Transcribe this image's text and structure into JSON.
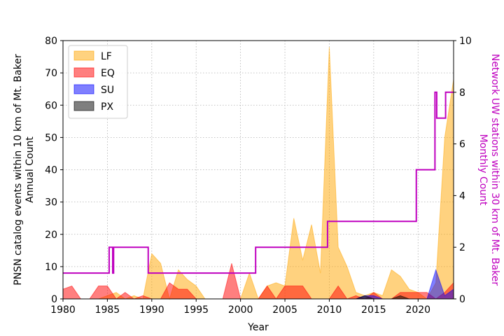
{
  "chart_data": {
    "type": "area",
    "xlabel": "Year",
    "ylabel_lines": [
      "PNSN catalog events within 10 km of Mt. Baker",
      "Annual Count"
    ],
    "ylabel2_lines": [
      "Network UW stations within 30 km of Mt. Baker",
      "Monthly Count"
    ],
    "xlim": [
      1980,
      2024
    ],
    "ylim": [
      0,
      80
    ],
    "ylim2": [
      0,
      10
    ],
    "xticks": [
      1980,
      1985,
      1990,
      1995,
      2000,
      2005,
      2010,
      2015,
      2020
    ],
    "yticks": [
      0,
      10,
      20,
      30,
      40,
      50,
      60,
      70,
      80
    ],
    "yticks2": [
      0,
      2,
      4,
      6,
      8,
      10
    ],
    "grid": true,
    "legend_position": "top-left",
    "colors": {
      "LF": "#ffa500",
      "EQ": "#ff0000",
      "SU": "#0000ff",
      "PX": "#000000",
      "stations": "#bf00bf"
    },
    "series": [
      {
        "name": "LF",
        "color": "#ffa500",
        "x": [
          1980,
          1981,
          1982,
          1983,
          1984,
          1985,
          1986,
          1987,
          1988,
          1989,
          1990,
          1991,
          1992,
          1993,
          1994,
          1995,
          1996,
          1997,
          1998,
          1999,
          2000,
          2001,
          2002,
          2003,
          2004,
          2005,
          2006,
          2007,
          2008,
          2009,
          2010,
          2011,
          2012,
          2013,
          2014,
          2015,
          2016,
          2017,
          2018,
          2019,
          2020,
          2021,
          2022,
          2023,
          2024
        ],
        "values": [
          0,
          0,
          0,
          0,
          0,
          1,
          2,
          0,
          1,
          0,
          14,
          11,
          0,
          9,
          6,
          4,
          0,
          0,
          0,
          0,
          0,
          8,
          0,
          4,
          5,
          4,
          25,
          12,
          23,
          8,
          78,
          16,
          10,
          2,
          1,
          2,
          1,
          9,
          7,
          3,
          2,
          0,
          5,
          50,
          68
        ]
      },
      {
        "name": "EQ",
        "color": "#ff0000",
        "x": [
          1980,
          1981,
          1982,
          1983,
          1984,
          1985,
          1986,
          1987,
          1988,
          1989,
          1990,
          1991,
          1992,
          1993,
          1994,
          1995,
          1996,
          1997,
          1998,
          1999,
          2000,
          2001,
          2002,
          2003,
          2004,
          2005,
          2006,
          2007,
          2008,
          2009,
          2010,
          2011,
          2012,
          2013,
          2014,
          2015,
          2016,
          2017,
          2018,
          2019,
          2020,
          2021,
          2022,
          2023,
          2024
        ],
        "values": [
          3,
          4,
          0,
          0,
          4,
          4,
          0,
          2,
          0,
          1,
          0,
          0,
          5,
          3,
          3,
          0,
          0,
          0,
          0,
          11,
          0,
          0,
          0,
          4,
          0,
          4,
          4,
          4,
          0,
          0,
          0,
          4,
          0,
          1,
          0,
          2,
          0,
          0,
          2,
          2,
          2,
          2,
          0,
          2,
          5
        ]
      },
      {
        "name": "SU",
        "color": "#0000ff",
        "x": [
          1980,
          1981,
          1982,
          1983,
          1984,
          1985,
          1986,
          1987,
          1988,
          1989,
          1990,
          1991,
          1992,
          1993,
          1994,
          1995,
          1996,
          1997,
          1998,
          1999,
          2000,
          2001,
          2002,
          2003,
          2004,
          2005,
          2006,
          2007,
          2008,
          2009,
          2010,
          2011,
          2012,
          2013,
          2014,
          2015,
          2016,
          2017,
          2018,
          2019,
          2020,
          2021,
          2022,
          2023,
          2024
        ],
        "values": [
          0,
          0,
          0,
          0,
          0,
          0,
          0,
          0,
          0,
          0,
          0,
          0,
          0,
          0,
          0,
          0,
          0,
          0,
          0,
          0,
          0,
          0,
          0,
          0,
          0,
          0,
          0,
          0,
          0,
          0,
          0,
          0,
          0,
          0,
          1,
          1,
          0,
          0,
          0,
          0,
          0,
          0,
          9,
          1,
          3
        ]
      },
      {
        "name": "PX",
        "color": "#000000",
        "x": [
          1980,
          1981,
          1982,
          1983,
          1984,
          1985,
          1986,
          1987,
          1988,
          1989,
          1990,
          1991,
          1992,
          1993,
          1994,
          1995,
          1996,
          1997,
          1998,
          1999,
          2000,
          2001,
          2002,
          2003,
          2004,
          2005,
          2006,
          2007,
          2008,
          2009,
          2010,
          2011,
          2012,
          2013,
          2014,
          2015,
          2016,
          2017,
          2018,
          2019,
          2020,
          2021,
          2022,
          2023,
          2024
        ],
        "values": [
          0,
          0,
          0,
          0,
          0,
          0,
          0,
          0,
          0,
          0,
          0,
          0,
          0,
          0,
          0,
          0,
          0,
          0,
          0,
          0,
          0,
          0,
          0,
          0,
          0,
          0,
          0,
          0,
          0,
          0,
          0,
          0,
          0,
          0,
          1,
          0,
          0,
          0,
          1,
          0,
          0,
          0,
          0,
          0,
          0
        ]
      }
    ],
    "station_series": {
      "color": "#bf00bf",
      "axis": "right",
      "x": [
        1980,
        1985.2,
        1985.2,
        1985.6,
        1985.6,
        1985.7,
        1985.7,
        1989.6,
        1989.6,
        2001.7,
        2001.7,
        2009.8,
        2009.8,
        2019.8,
        2019.8,
        2021.9,
        2021.9,
        2022.1,
        2022.1,
        2023.1,
        2023.1,
        2024
      ],
      "values": [
        1,
        1,
        2,
        2,
        1,
        1,
        2,
        2,
        1,
        1,
        2,
        2,
        3,
        3,
        5,
        5,
        8,
        8,
        7,
        7,
        8,
        8
      ]
    }
  }
}
